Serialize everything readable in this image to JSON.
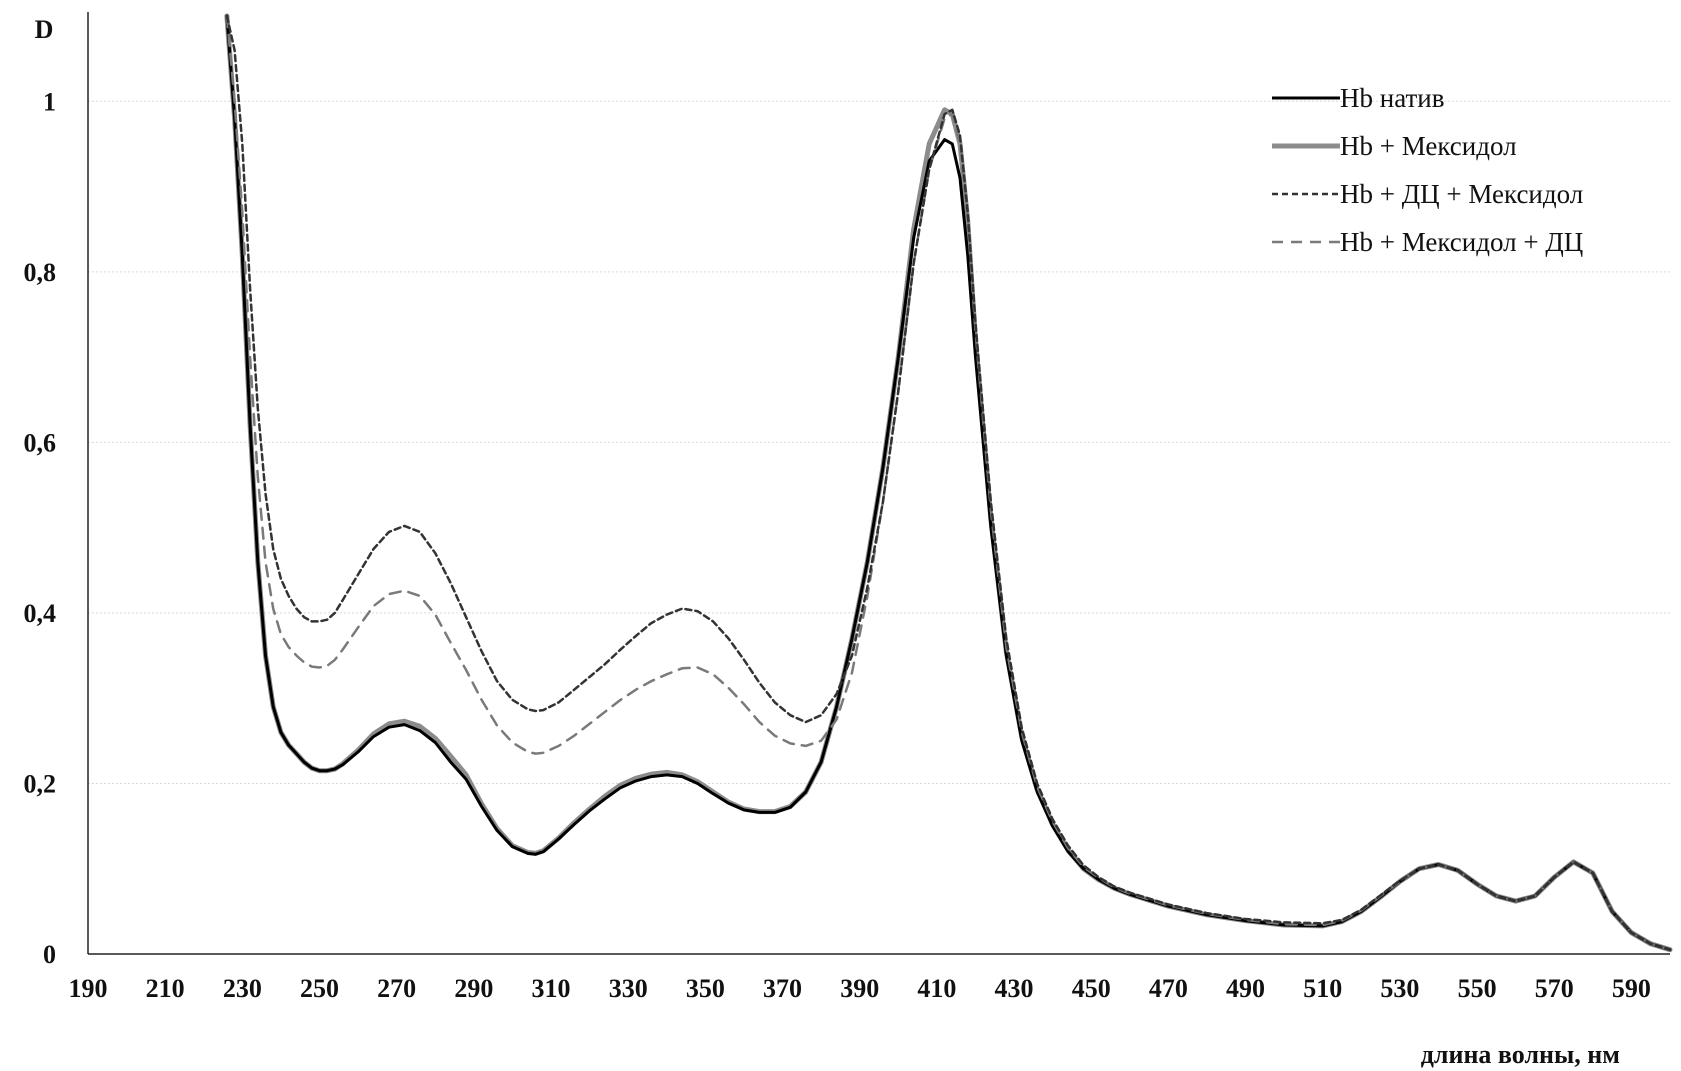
{
  "chart_data": {
    "type": "line",
    "title": "",
    "xlabel": "длина волны, нм",
    "ylabel": "D",
    "xlim": [
      190,
      600
    ],
    "ylim": [
      0,
      1.1
    ],
    "x_ticks": [
      "190",
      "210",
      "230",
      "250",
      "270",
      "290",
      "310",
      "330",
      "350",
      "370",
      "390",
      "410",
      "430",
      "450",
      "470",
      "490",
      "510",
      "530",
      "550",
      "570",
      "590"
    ],
    "y_ticks": [
      "0",
      "0,2",
      "0,4",
      "0,6",
      "0,8",
      "1"
    ],
    "y_tick_values": [
      0,
      0.2,
      0.4,
      0.6,
      0.8,
      1.0
    ],
    "grid": "horizontal",
    "legend_position": "top-right",
    "x": [
      226,
      228,
      230,
      232,
      234,
      236,
      238,
      240,
      242,
      244,
      246,
      248,
      250,
      252,
      254,
      256,
      260,
      264,
      268,
      272,
      276,
      280,
      284,
      288,
      292,
      296,
      300,
      304,
      306,
      308,
      312,
      316,
      320,
      324,
      328,
      332,
      336,
      340,
      344,
      348,
      352,
      356,
      360,
      364,
      368,
      372,
      376,
      380,
      384,
      388,
      392,
      396,
      400,
      404,
      408,
      412,
      414,
      416,
      418,
      420,
      424,
      428,
      432,
      436,
      440,
      444,
      448,
      452,
      456,
      460,
      470,
      480,
      490,
      500,
      510,
      515,
      520,
      525,
      530,
      535,
      540,
      545,
      550,
      555,
      560,
      565,
      570,
      575,
      580,
      585,
      590,
      595,
      600
    ],
    "series": [
      {
        "name": "Hb натив",
        "color": "#000000",
        "style": "solid",
        "width": 3,
        "values": [
          1.1,
          0.98,
          0.82,
          0.62,
          0.46,
          0.35,
          0.29,
          0.26,
          0.245,
          0.235,
          0.225,
          0.218,
          0.215,
          0.215,
          0.217,
          0.222,
          0.237,
          0.255,
          0.266,
          0.269,
          0.262,
          0.248,
          0.225,
          0.205,
          0.173,
          0.145,
          0.126,
          0.118,
          0.117,
          0.12,
          0.135,
          0.152,
          0.168,
          0.182,
          0.195,
          0.203,
          0.208,
          0.21,
          0.208,
          0.2,
          0.188,
          0.177,
          0.169,
          0.166,
          0.166,
          0.172,
          0.19,
          0.225,
          0.29,
          0.37,
          0.46,
          0.57,
          0.7,
          0.84,
          0.93,
          0.955,
          0.95,
          0.91,
          0.82,
          0.7,
          0.5,
          0.35,
          0.25,
          0.19,
          0.15,
          0.12,
          0.1,
          0.087,
          0.077,
          0.07,
          0.056,
          0.046,
          0.039,
          0.034,
          0.033,
          0.038,
          0.05,
          0.067,
          0.085,
          0.1,
          0.105,
          0.098,
          0.082,
          0.068,
          0.062,
          0.068,
          0.09,
          0.108,
          0.095,
          0.05,
          0.025,
          0.012,
          0.005
        ]
      },
      {
        "name": "Hb + Мексидол",
        "color": "#8c8c8c",
        "style": "solid",
        "width": 5,
        "values": [
          1.1,
          0.98,
          0.82,
          0.62,
          0.46,
          0.35,
          0.29,
          0.26,
          0.245,
          0.235,
          0.225,
          0.218,
          0.215,
          0.215,
          0.217,
          0.223,
          0.239,
          0.258,
          0.27,
          0.273,
          0.267,
          0.253,
          0.232,
          0.21,
          0.176,
          0.147,
          0.127,
          0.119,
          0.118,
          0.121,
          0.136,
          0.154,
          0.17,
          0.185,
          0.198,
          0.206,
          0.211,
          0.213,
          0.21,
          0.202,
          0.19,
          0.178,
          0.17,
          0.167,
          0.167,
          0.173,
          0.19,
          0.225,
          0.29,
          0.37,
          0.46,
          0.57,
          0.7,
          0.85,
          0.95,
          0.99,
          0.985,
          0.95,
          0.86,
          0.72,
          0.51,
          0.355,
          0.255,
          0.193,
          0.152,
          0.122,
          0.1,
          0.087,
          0.077,
          0.07,
          0.056,
          0.046,
          0.039,
          0.034,
          0.033,
          0.038,
          0.05,
          0.067,
          0.085,
          0.1,
          0.105,
          0.098,
          0.082,
          0.068,
          0.062,
          0.068,
          0.09,
          0.108,
          0.095,
          0.05,
          0.025,
          0.012,
          0.005
        ]
      },
      {
        "name": "Hb + ДЦ + Мексидол",
        "color": "#333333",
        "style": "dotted",
        "width": 2.5,
        "values": [
          1.1,
          1.06,
          0.95,
          0.78,
          0.64,
          0.54,
          0.475,
          0.44,
          0.42,
          0.405,
          0.395,
          0.39,
          0.39,
          0.392,
          0.4,
          0.415,
          0.445,
          0.475,
          0.495,
          0.502,
          0.495,
          0.47,
          0.435,
          0.395,
          0.355,
          0.32,
          0.298,
          0.287,
          0.285,
          0.286,
          0.295,
          0.31,
          0.325,
          0.34,
          0.357,
          0.373,
          0.388,
          0.398,
          0.405,
          0.402,
          0.39,
          0.37,
          0.345,
          0.318,
          0.295,
          0.28,
          0.272,
          0.28,
          0.305,
          0.35,
          0.43,
          0.53,
          0.66,
          0.81,
          0.92,
          0.985,
          0.99,
          0.96,
          0.87,
          0.74,
          0.53,
          0.37,
          0.265,
          0.2,
          0.158,
          0.127,
          0.104,
          0.09,
          0.079,
          0.072,
          0.058,
          0.048,
          0.041,
          0.037,
          0.036,
          0.04,
          0.052,
          0.069,
          0.086,
          0.1,
          0.105,
          0.098,
          0.082,
          0.068,
          0.062,
          0.068,
          0.09,
          0.108,
          0.095,
          0.05,
          0.025,
          0.012,
          0.005
        ]
      },
      {
        "name": "Hb + Мексидол + ДЦ",
        "color": "#7a7a7a",
        "style": "dashed",
        "width": 2.5,
        "values": [
          1.1,
          1.0,
          0.87,
          0.7,
          0.56,
          0.46,
          0.405,
          0.375,
          0.36,
          0.35,
          0.342,
          0.337,
          0.336,
          0.338,
          0.345,
          0.357,
          0.383,
          0.408,
          0.422,
          0.426,
          0.42,
          0.398,
          0.365,
          0.333,
          0.298,
          0.268,
          0.248,
          0.237,
          0.235,
          0.236,
          0.244,
          0.256,
          0.27,
          0.284,
          0.298,
          0.31,
          0.32,
          0.328,
          0.335,
          0.336,
          0.328,
          0.312,
          0.293,
          0.272,
          0.256,
          0.247,
          0.244,
          0.25,
          0.275,
          0.33,
          0.42,
          0.53,
          0.66,
          0.81,
          0.92,
          0.98,
          0.985,
          0.95,
          0.86,
          0.73,
          0.52,
          0.36,
          0.26,
          0.196,
          0.155,
          0.124,
          0.102,
          0.089,
          0.078,
          0.071,
          0.057,
          0.047,
          0.04,
          0.035,
          0.034,
          0.039,
          0.051,
          0.068,
          0.085,
          0.1,
          0.105,
          0.098,
          0.082,
          0.068,
          0.062,
          0.068,
          0.09,
          0.108,
          0.095,
          0.05,
          0.025,
          0.012,
          0.005
        ]
      }
    ]
  }
}
